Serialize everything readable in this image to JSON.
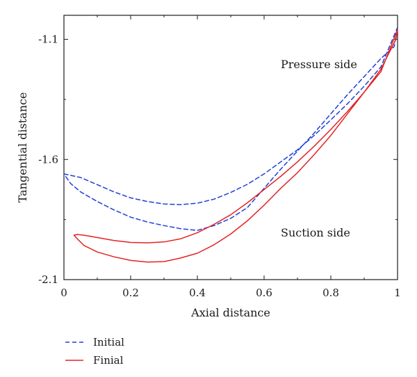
{
  "chart_data": {
    "type": "line",
    "title": "",
    "xlabel": "Axial distance",
    "ylabel": "Tangential distance",
    "xlim": [
      0,
      1
    ],
    "ylim": [
      -2.1,
      -1.0
    ],
    "x_ticks": [
      0,
      0.2,
      0.4,
      0.6,
      0.8,
      1
    ],
    "x_tick_labels": [
      "0",
      "0.2",
      "0.4",
      "0.6",
      "0.8",
      "1"
    ],
    "y_ticks": [
      -2.1,
      -1.6,
      -1.1
    ],
    "y_tick_labels": [
      "-2.1",
      "-1.6",
      "-1.1"
    ],
    "grid": false,
    "legend_position": "bottom-left, outside plot",
    "annotations": [
      {
        "text": "Pressure side",
        "x": 0.65,
        "y": -1.22
      },
      {
        "text": "Suction side",
        "x": 0.65,
        "y": -1.92
      }
    ],
    "series": [
      {
        "name": "Initial",
        "style": "dashed",
        "color": "#1f3fd8",
        "x": [
          0.0,
          0.05,
          0.1,
          0.15,
          0.2,
          0.25,
          0.3,
          0.35,
          0.4,
          0.45,
          0.5,
          0.55,
          0.6,
          0.65,
          0.7,
          0.75,
          0.8,
          0.85,
          0.9,
          0.95,
          1.0,
          0.99,
          0.95,
          0.9,
          0.85,
          0.8,
          0.75,
          0.7,
          0.65,
          0.6,
          0.55,
          0.5,
          0.45,
          0.4,
          0.35,
          0.3,
          0.25,
          0.2,
          0.15,
          0.1,
          0.05,
          0.02,
          0.0
        ],
        "y": [
          -1.66,
          -1.675,
          -1.705,
          -1.735,
          -1.76,
          -1.775,
          -1.785,
          -1.788,
          -1.782,
          -1.765,
          -1.737,
          -1.703,
          -1.66,
          -1.61,
          -1.56,
          -1.5,
          -1.435,
          -1.368,
          -1.295,
          -1.215,
          -1.05,
          -1.13,
          -1.18,
          -1.255,
          -1.33,
          -1.41,
          -1.49,
          -1.565,
          -1.64,
          -1.72,
          -1.8,
          -1.845,
          -1.875,
          -1.895,
          -1.888,
          -1.875,
          -1.86,
          -1.84,
          -1.81,
          -1.775,
          -1.735,
          -1.7,
          -1.66
        ]
      },
      {
        "name": "Finial",
        "style": "solid",
        "color": "#e42222",
        "x": [
          0.03,
          0.04,
          0.06,
          0.1,
          0.15,
          0.2,
          0.25,
          0.3,
          0.35,
          0.4,
          0.45,
          0.5,
          0.55,
          0.6,
          0.65,
          0.7,
          0.75,
          0.8,
          0.85,
          0.9,
          0.95,
          1.0,
          0.995,
          0.95,
          0.9,
          0.85,
          0.8,
          0.75,
          0.7,
          0.65,
          0.6,
          0.55,
          0.5,
          0.45,
          0.4,
          0.35,
          0.3,
          0.25,
          0.2,
          0.15,
          0.1,
          0.06,
          0.04,
          0.03
        ],
        "y": [
          -1.915,
          -1.912,
          -1.915,
          -1.925,
          -1.937,
          -1.945,
          -1.947,
          -1.943,
          -1.93,
          -1.905,
          -1.87,
          -1.83,
          -1.78,
          -1.725,
          -1.67,
          -1.61,
          -1.545,
          -1.475,
          -1.4,
          -1.32,
          -1.235,
          -1.06,
          -1.1,
          -1.225,
          -1.32,
          -1.41,
          -1.5,
          -1.58,
          -1.655,
          -1.72,
          -1.79,
          -1.855,
          -1.91,
          -1.955,
          -1.99,
          -2.01,
          -2.025,
          -2.027,
          -2.02,
          -2.005,
          -1.985,
          -1.958,
          -1.93,
          -1.915
        ]
      }
    ]
  }
}
